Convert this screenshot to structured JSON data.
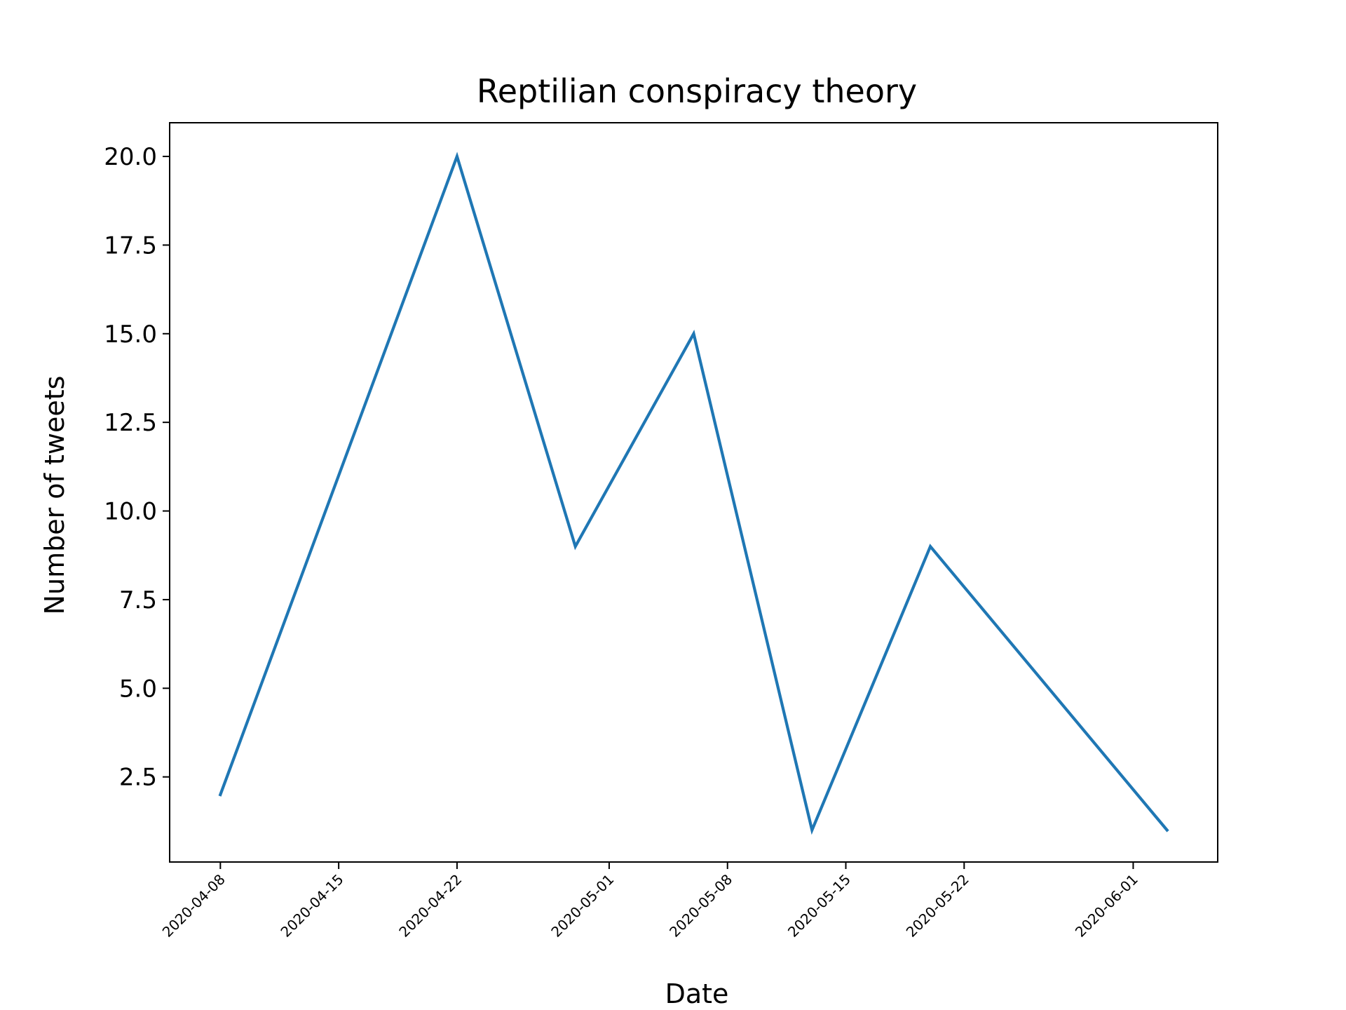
{
  "chart_data": {
    "type": "line",
    "title": "Reptilian conspiracy theory",
    "xlabel": "Date",
    "ylabel": "Number of tweets",
    "x_axis_type": "date",
    "xlim": [
      "2020-04-05",
      "2020-06-06"
    ],
    "ylim": [
      0.1,
      20.95
    ],
    "grid": false,
    "x_ticks": [
      "2020-04-08",
      "2020-04-15",
      "2020-04-22",
      "2020-05-01",
      "2020-05-08",
      "2020-05-15",
      "2020-05-22",
      "2020-06-01"
    ],
    "y_ticks": [
      "2.5",
      "5.0",
      "7.5",
      "10.0",
      "12.5",
      "15.0",
      "17.5",
      "20.0"
    ],
    "series": [
      {
        "color": "#1f77b4",
        "points": [
          {
            "x": "2020-04-08",
            "y": 2
          },
          {
            "x": "2020-04-15",
            "y": 11
          },
          {
            "x": "2020-04-22",
            "y": 20
          },
          {
            "x": "2020-04-29",
            "y": 9
          },
          {
            "x": "2020-05-06",
            "y": 15
          },
          {
            "x": "2020-05-13",
            "y": 1
          },
          {
            "x": "2020-05-20",
            "y": 9
          },
          {
            "x": "2020-06-03",
            "y": 1
          }
        ]
      }
    ]
  }
}
